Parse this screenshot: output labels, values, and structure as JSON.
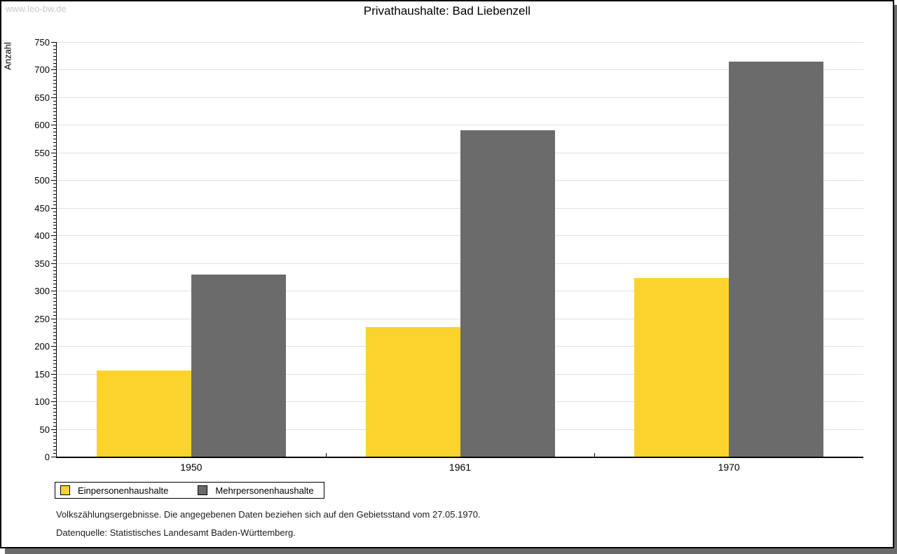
{
  "watermark": "www.leo-bw.de",
  "title": "Privathaushalte: Bad Liebenzell",
  "chart_data": {
    "type": "bar",
    "title": "Privathaushalte: Bad Liebenzell",
    "xlabel": "",
    "ylabel": "Anzahl",
    "categories": [
      "1950",
      "1961",
      "1970"
    ],
    "series": [
      {
        "name": "Einpersonenhaushalte",
        "color": "#fcd32c",
        "values": [
          156,
          235,
          323
        ]
      },
      {
        "name": "Mehrpersonenhaushalte",
        "color": "#6b6b6b",
        "values": [
          330,
          590,
          715
        ]
      }
    ],
    "ylim": [
      0,
      750
    ],
    "ytick_step": 50,
    "minor_ticks_per_interval": 7,
    "grid": true,
    "gridline_color": "#e0e0e0",
    "legend_position": "bottom-left"
  },
  "footnotes": [
    "Volkszählungsergebnisse. Die angegebenen Daten beziehen sich auf den Gebietsstand vom 27.05.1970.",
    "Datenquelle: Statistisches Landesamt Baden-Württemberg."
  ]
}
